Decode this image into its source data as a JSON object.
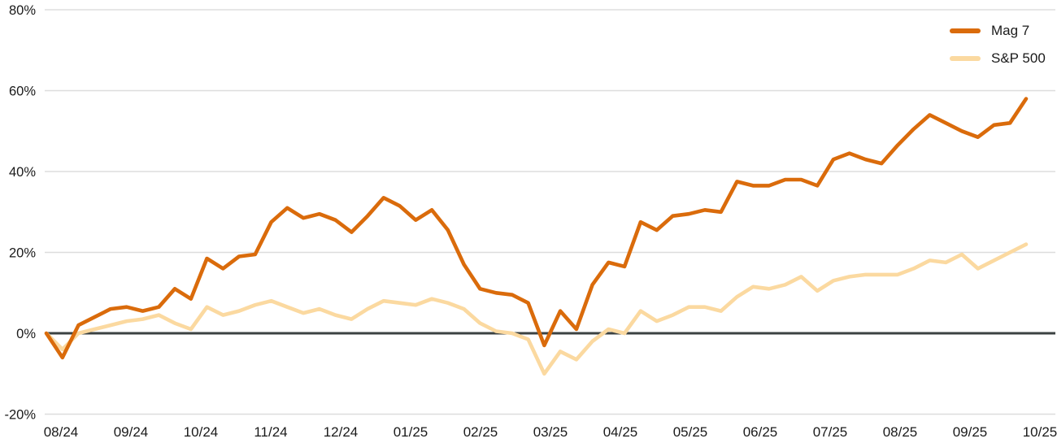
{
  "chart_data": {
    "type": "line",
    "title": "",
    "xlabel": "",
    "ylabel": "",
    "x_tick_labels": [
      "08/24",
      "09/24",
      "10/24",
      "11/24",
      "12/24",
      "01/25",
      "02/25",
      "03/25",
      "04/25",
      "05/25",
      "06/25",
      "07/25",
      "08/25",
      "09/25",
      "10/25"
    ],
    "y_ticks": [
      {
        "value": 80,
        "label": "80%"
      },
      {
        "value": 60,
        "label": "60%"
      },
      {
        "value": 40,
        "label": "40%"
      },
      {
        "value": 20,
        "label": "20%"
      },
      {
        "value": 0,
        "label": "0%"
      },
      {
        "value": -20,
        "label": "-20%"
      }
    ],
    "ylim": [
      -20,
      80
    ],
    "y_unit": "percent",
    "grid": "horizontal",
    "zero_baseline": true,
    "legend_position": "top-right",
    "series": [
      {
        "name": "Mag 7",
        "color": "#DA6B0B",
        "values": [
          0,
          -6,
          2,
          4,
          6,
          6.5,
          5.5,
          6.5,
          11,
          8.5,
          18.5,
          16,
          19,
          19.5,
          27.5,
          31,
          28.5,
          29.5,
          28,
          25,
          29,
          33.5,
          31.5,
          28,
          30.5,
          25.5,
          17,
          11,
          10,
          9.5,
          7.5,
          -3,
          5.5,
          1,
          12,
          17.5,
          16.5,
          27.5,
          25.5,
          29,
          29.5,
          30.5,
          30,
          37.5,
          36.5,
          36.5,
          38,
          38,
          36.5,
          43,
          44.5,
          43,
          42,
          46.5,
          50.5,
          54,
          52,
          50,
          48.5,
          51.5,
          52,
          58
        ]
      },
      {
        "name": "S&P 500",
        "color": "#FBD9A0",
        "values": [
          0,
          -4,
          0,
          1,
          2,
          3,
          3.5,
          4.5,
          2.5,
          1,
          6.5,
          4.5,
          5.5,
          7,
          8,
          6.5,
          5,
          6,
          4.5,
          3.5,
          6,
          8,
          7.5,
          7,
          8.5,
          7.5,
          6,
          2.5,
          0.5,
          0,
          -1.5,
          -10,
          -4.5,
          -6.5,
          -2,
          1,
          0,
          5.5,
          3,
          4.5,
          6.5,
          6.5,
          5.5,
          9,
          11.5,
          11,
          12,
          14,
          10.5,
          13,
          14,
          14.5,
          14.5,
          14.5,
          16,
          18,
          17.5,
          19.5,
          16,
          18,
          20,
          22
        ]
      }
    ]
  },
  "colors": {
    "grid_line": "#DDDDDD",
    "zero_line": "#3B4242",
    "tick_text": "#1A1A1A",
    "background": "#FFFFFF"
  }
}
